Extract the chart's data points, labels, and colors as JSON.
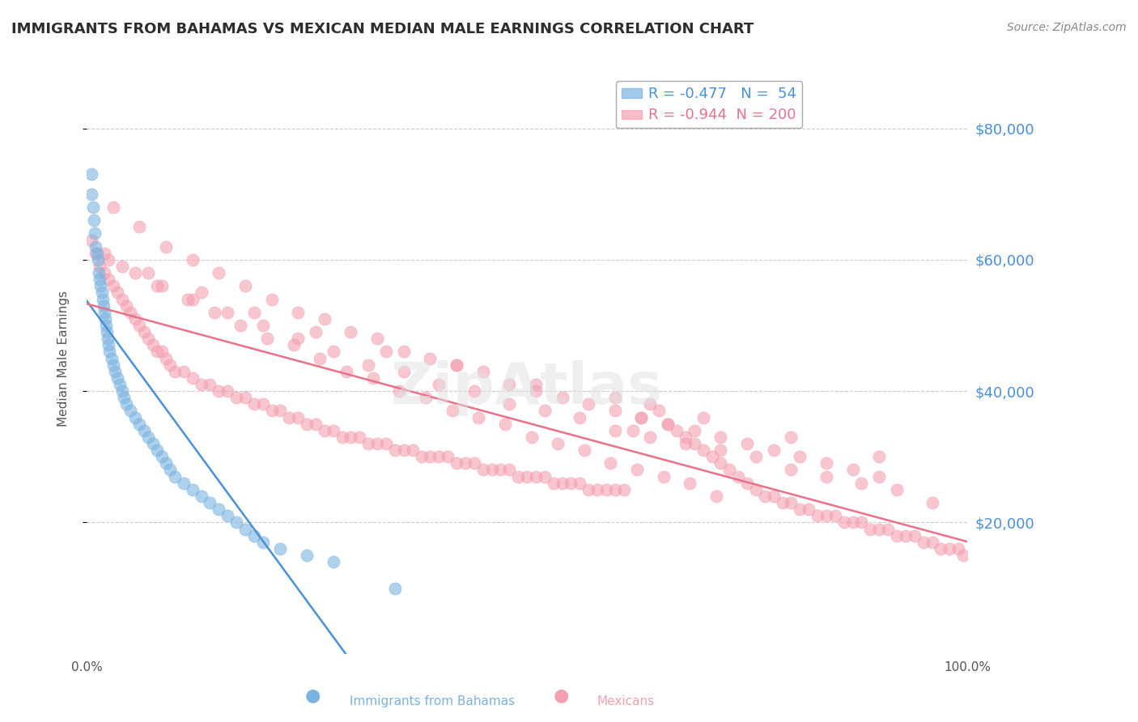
{
  "title": "IMMIGRANTS FROM BAHAMAS VS MEXICAN MEDIAN MALE EARNINGS CORRELATION CHART",
  "source_text": "Source: ZipAtlas.com",
  "xlabel": "",
  "ylabel": "Median Male Earnings",
  "x_tick_labels": [
    "0.0%",
    "100.0%"
  ],
  "y_tick_labels": [
    "$20,000",
    "$40,000",
    "$60,000",
    "$80,000"
  ],
  "y_tick_values": [
    20000,
    40000,
    60000,
    80000
  ],
  "title_color": "#2d2d2d",
  "title_fontsize": 13,
  "axis_label_color": "#555555",
  "tick_color_y": "#4a90d9",
  "tick_color_x": "#555555",
  "source_color": "#888888",
  "background_color": "#ffffff",
  "grid_color": "#cccccc",
  "legend_r1": "R = -0.477",
  "legend_n1": "N =  54",
  "legend_r2": "R = -0.944",
  "legend_n2": "N = 200",
  "legend_color1": "#4a90d9",
  "legend_color2": "#e8728a",
  "bahamas_color": "#7ab3e0",
  "mexican_color": "#f4a0b0",
  "bahamas_line_color": "#4a90d9",
  "mexican_line_color": "#e8728a",
  "marker_size": 120,
  "marker_alpha": 0.6,
  "xlim": [
    0,
    1.0
  ],
  "ylim": [
    0,
    90000
  ],
  "bahamas_x": [
    0.005,
    0.005,
    0.007,
    0.008,
    0.009,
    0.01,
    0.012,
    0.013,
    0.014,
    0.015,
    0.016,
    0.017,
    0.018,
    0.019,
    0.02,
    0.021,
    0.022,
    0.023,
    0.024,
    0.025,
    0.026,
    0.028,
    0.03,
    0.032,
    0.035,
    0.038,
    0.04,
    0.042,
    0.045,
    0.05,
    0.055,
    0.06,
    0.065,
    0.07,
    0.075,
    0.08,
    0.085,
    0.09,
    0.095,
    0.1,
    0.11,
    0.12,
    0.13,
    0.14,
    0.15,
    0.16,
    0.17,
    0.18,
    0.19,
    0.2,
    0.22,
    0.25,
    0.28,
    0.35
  ],
  "bahamas_y": [
    73000,
    70000,
    68000,
    66000,
    64000,
    62000,
    61000,
    60000,
    58000,
    57000,
    56000,
    55000,
    54000,
    53000,
    52000,
    51000,
    50000,
    49000,
    48000,
    47000,
    46000,
    45000,
    44000,
    43000,
    42000,
    41000,
    40000,
    39000,
    38000,
    37000,
    36000,
    35000,
    34000,
    33000,
    32000,
    31000,
    30000,
    29000,
    28000,
    27000,
    26000,
    25000,
    24000,
    23000,
    22000,
    21000,
    20000,
    19000,
    18000,
    17000,
    16000,
    15000,
    14000,
    10000
  ],
  "mexican_x": [
    0.005,
    0.01,
    0.015,
    0.02,
    0.025,
    0.03,
    0.035,
    0.04,
    0.045,
    0.05,
    0.055,
    0.06,
    0.065,
    0.07,
    0.075,
    0.08,
    0.085,
    0.09,
    0.095,
    0.1,
    0.11,
    0.12,
    0.13,
    0.14,
    0.15,
    0.16,
    0.17,
    0.18,
    0.19,
    0.2,
    0.21,
    0.22,
    0.23,
    0.24,
    0.25,
    0.26,
    0.27,
    0.28,
    0.29,
    0.3,
    0.31,
    0.32,
    0.33,
    0.34,
    0.35,
    0.36,
    0.37,
    0.38,
    0.39,
    0.4,
    0.41,
    0.42,
    0.43,
    0.44,
    0.45,
    0.46,
    0.47,
    0.48,
    0.49,
    0.5,
    0.51,
    0.52,
    0.53,
    0.54,
    0.55,
    0.56,
    0.57,
    0.58,
    0.59,
    0.6,
    0.61,
    0.62,
    0.63,
    0.64,
    0.65,
    0.66,
    0.67,
    0.68,
    0.69,
    0.7,
    0.71,
    0.72,
    0.73,
    0.74,
    0.75,
    0.76,
    0.77,
    0.78,
    0.79,
    0.8,
    0.81,
    0.82,
    0.83,
    0.84,
    0.85,
    0.86,
    0.87,
    0.88,
    0.89,
    0.9,
    0.91,
    0.92,
    0.93,
    0.94,
    0.95,
    0.96,
    0.97,
    0.98,
    0.99,
    0.995,
    0.03,
    0.06,
    0.09,
    0.12,
    0.15,
    0.18,
    0.21,
    0.24,
    0.27,
    0.3,
    0.33,
    0.36,
    0.39,
    0.42,
    0.45,
    0.48,
    0.51,
    0.54,
    0.57,
    0.6,
    0.63,
    0.66,
    0.69,
    0.72,
    0.75,
    0.78,
    0.81,
    0.84,
    0.87,
    0.9,
    0.04,
    0.08,
    0.12,
    0.16,
    0.2,
    0.24,
    0.28,
    0.32,
    0.36,
    0.4,
    0.44,
    0.48,
    0.52,
    0.56,
    0.6,
    0.64,
    0.68,
    0.72,
    0.76,
    0.8,
    0.84,
    0.88,
    0.92,
    0.96,
    0.02,
    0.07,
    0.13,
    0.19,
    0.26,
    0.34,
    0.42,
    0.51,
    0.6,
    0.7,
    0.8,
    0.9,
    0.025,
    0.055,
    0.085,
    0.115,
    0.145,
    0.175,
    0.205,
    0.235,
    0.265,
    0.295,
    0.325,
    0.355,
    0.385,
    0.415,
    0.445,
    0.475,
    0.505,
    0.535,
    0.565,
    0.595,
    0.625,
    0.655,
    0.685,
    0.715
  ],
  "mexican_y": [
    63000,
    61000,
    59000,
    58000,
    57000,
    56000,
    55000,
    54000,
    53000,
    52000,
    51000,
    50000,
    49000,
    48000,
    47000,
    46000,
    46000,
    45000,
    44000,
    43000,
    43000,
    42000,
    41000,
    41000,
    40000,
    40000,
    39000,
    39000,
    38000,
    38000,
    37000,
    37000,
    36000,
    36000,
    35000,
    35000,
    34000,
    34000,
    33000,
    33000,
    33000,
    32000,
    32000,
    32000,
    31000,
    31000,
    31000,
    30000,
    30000,
    30000,
    30000,
    29000,
    29000,
    29000,
    28000,
    28000,
    28000,
    28000,
    27000,
    27000,
    27000,
    27000,
    26000,
    26000,
    26000,
    26000,
    25000,
    25000,
    25000,
    25000,
    25000,
    34000,
    36000,
    38000,
    37000,
    35000,
    34000,
    33000,
    32000,
    31000,
    30000,
    29000,
    28000,
    27000,
    26000,
    25000,
    24000,
    24000,
    23000,
    23000,
    22000,
    22000,
    21000,
    21000,
    21000,
    20000,
    20000,
    20000,
    19000,
    19000,
    19000,
    18000,
    18000,
    18000,
    17000,
    17000,
    16000,
    16000,
    16000,
    15000,
    68000,
    65000,
    62000,
    60000,
    58000,
    56000,
    54000,
    52000,
    51000,
    49000,
    48000,
    46000,
    45000,
    44000,
    43000,
    41000,
    40000,
    39000,
    38000,
    37000,
    36000,
    35000,
    34000,
    33000,
    32000,
    31000,
    30000,
    29000,
    28000,
    27000,
    59000,
    56000,
    54000,
    52000,
    50000,
    48000,
    46000,
    44000,
    43000,
    41000,
    40000,
    38000,
    37000,
    36000,
    34000,
    33000,
    32000,
    31000,
    30000,
    28000,
    27000,
    26000,
    25000,
    23000,
    61000,
    58000,
    55000,
    52000,
    49000,
    46000,
    44000,
    41000,
    39000,
    36000,
    33000,
    30000,
    60000,
    58000,
    56000,
    54000,
    52000,
    50000,
    48000,
    47000,
    45000,
    43000,
    42000,
    40000,
    39000,
    37000,
    36000,
    35000,
    33000,
    32000,
    31000,
    29000,
    28000,
    27000,
    26000,
    24000
  ]
}
